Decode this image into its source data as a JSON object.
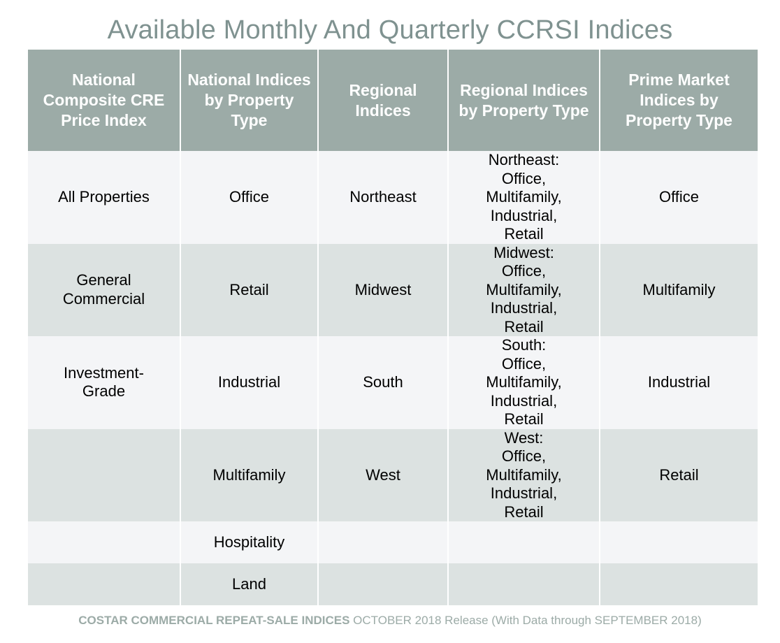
{
  "title": "Available Monthly And Quarterly CCRSI Indices",
  "colors": {
    "title": "#7f9290",
    "header_bg": "#9caba7",
    "row_light": "#f4f5f7",
    "row_dark": "#dce2e1"
  },
  "table": {
    "headers": [
      "National Composite CRE Price Index",
      "National Indices by Property Type",
      "Regional Indices",
      "Regional Indices by Property Type",
      "Prime Market Indices by Property Type"
    ],
    "rows": [
      [
        "All Properties",
        "Office",
        "Northeast",
        "Northeast:\nOffice,\nMultifamily,\nIndustrial,\nRetail",
        "Office"
      ],
      [
        "General\nCommercial",
        "Retail",
        "Midwest",
        "Midwest:\nOffice,\nMultifamily,\nIndustrial,\nRetail",
        "Multifamily"
      ],
      [
        "Investment-\nGrade",
        "Industrial",
        "South",
        "South:\nOffice,\nMultifamily,\nIndustrial,\nRetail",
        "Industrial"
      ],
      [
        "",
        "Multifamily",
        "West",
        "West:\nOffice,\nMultifamily,\nIndustrial,\nRetail",
        "Retail"
      ],
      [
        "",
        "Hospitality",
        "",
        "",
        ""
      ],
      [
        "",
        "Land",
        "",
        "",
        ""
      ]
    ]
  },
  "footer": {
    "brand": "COSTAR COMMERCIAL REPEAT-SALE INDICES",
    "release": " OCTOBER 2018 Release (With Data through SEPTEMBER 2018)"
  }
}
